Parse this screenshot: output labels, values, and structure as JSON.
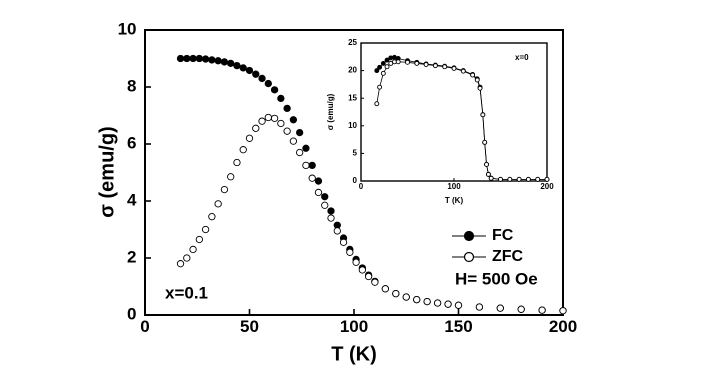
{
  "chart_data": [
    {
      "type": "scatter",
      "xlabel": "T (K)",
      "ylabel": "σ (emu/g)",
      "xlim": [
        0,
        200
      ],
      "ylim": [
        0,
        10
      ],
      "xticks": [
        0,
        50,
        100,
        150,
        200
      ],
      "yticks": [
        0,
        2,
        4,
        6,
        8,
        10
      ],
      "legend": "lower right",
      "annotations": [
        "x=0.1",
        "H= 500 Oe"
      ],
      "connect": false,
      "x": [
        17,
        20,
        23,
        26,
        29,
        32,
        35,
        38,
        41,
        44,
        47,
        50,
        53,
        56,
        59,
        62,
        65,
        68,
        71,
        74,
        77,
        80,
        83,
        86,
        89,
        92,
        95,
        98,
        101,
        104,
        107,
        110,
        115,
        120,
        125,
        130,
        135,
        140,
        145,
        150,
        160,
        170,
        180,
        190,
        200
      ],
      "series": [
        {
          "name": "FC",
          "color": "#000000",
          "filled": true,
          "values": [
            9.0,
            9.0,
            9.0,
            9.0,
            8.98,
            8.95,
            8.92,
            8.88,
            8.83,
            8.75,
            8.67,
            8.58,
            8.45,
            8.3,
            8.12,
            7.9,
            7.6,
            7.25,
            6.85,
            6.4,
            5.85,
            5.25,
            4.7,
            4.15,
            3.65,
            3.15,
            2.7,
            2.3,
            1.95,
            1.65,
            1.4,
            1.18,
            0.92,
            0.75,
            0.63,
            0.54,
            0.47,
            0.42,
            0.38,
            0.34,
            0.28,
            0.24,
            0.2,
            0.17,
            0.15
          ]
        },
        {
          "name": "ZFC",
          "color": "#000000",
          "filled": false,
          "values": [
            1.8,
            2.0,
            2.3,
            2.65,
            3.0,
            3.45,
            3.9,
            4.4,
            4.85,
            5.35,
            5.8,
            6.2,
            6.55,
            6.8,
            6.93,
            6.9,
            6.72,
            6.45,
            6.1,
            5.7,
            5.25,
            4.8,
            4.3,
            3.85,
            3.4,
            2.95,
            2.55,
            2.2,
            1.85,
            1.58,
            1.35,
            1.15,
            0.92,
            0.75,
            0.63,
            0.54,
            0.47,
            0.42,
            0.38,
            0.34,
            0.28,
            0.24,
            0.2,
            0.17,
            0.15
          ]
        }
      ]
    },
    {
      "type": "scatter",
      "xlabel": "T (K)",
      "ylabel": "σ (emu/g)",
      "xlim": [
        0,
        200
      ],
      "ylim": [
        0,
        25
      ],
      "xticks": [
        0,
        100,
        200
      ],
      "yticks": [
        0,
        5,
        10,
        15,
        20,
        25
      ],
      "annotations": [
        "x=0"
      ],
      "connect": true,
      "x": [
        17,
        20,
        24,
        28,
        32,
        36,
        40,
        50,
        60,
        70,
        80,
        90,
        100,
        110,
        120,
        125,
        128,
        131,
        133,
        135,
        137,
        140,
        150,
        160,
        170,
        180,
        190,
        200
      ],
      "series": [
        {
          "color": "#000000",
          "filled": true,
          "values": [
            20,
            20.6,
            21.3,
            21.9,
            22.3,
            22.4,
            22.2,
            21.8,
            21.5,
            21.2,
            21,
            20.8,
            20.5,
            20,
            19.3,
            18.5,
            17,
            12,
            7,
            3,
            1.2,
            0.5,
            0.3,
            0.3,
            0.3,
            0.3,
            0.3,
            0.3
          ]
        },
        {
          "color": "#000000",
          "filled": false,
          "values": [
            14,
            17,
            19.5,
            20.7,
            21.3,
            21.6,
            21.6,
            21.5,
            21.3,
            21.1,
            20.9,
            20.7,
            20.4,
            19.9,
            19.2,
            18.3,
            16.8,
            12,
            7,
            3,
            1.2,
            0.5,
            0.3,
            0.3,
            0.3,
            0.3,
            0.3,
            0.3
          ]
        }
      ]
    }
  ]
}
